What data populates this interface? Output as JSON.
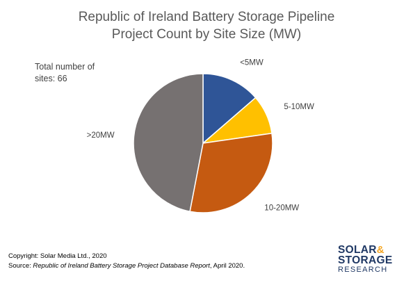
{
  "chart_data": {
    "type": "pie",
    "title": "Republic of Ireland Battery Storage Pipeline",
    "subtitle": "Project Count by Site Size (MW)",
    "annotation": "Total number of sites: 66",
    "total_label_line1": "Total number of",
    "total_label_line2": "sites: 66",
    "categories": [
      "<5MW",
      "5-10MW",
      "10-20MW",
      ">20MW"
    ],
    "values": [
      9,
      6,
      20,
      31
    ],
    "colors": [
      "#2f5597",
      "#ffc000",
      "#c55a11",
      "#767171"
    ],
    "start_angle_deg": 0,
    "direction": "clockwise",
    "legend": "none (data labels beside slices)"
  },
  "footer": {
    "copyright": "Copyright: Solar Media Ltd., 2020",
    "source_prefix": "Source: ",
    "source_title": "Republic of Ireland Battery Storage Project Database Report",
    "source_suffix": ", April 2020."
  },
  "logo": {
    "line1": "SOLAR",
    "ampersand": "&",
    "line2": "STORAGE",
    "line3": "RESEARCH",
    "color_dark": "#1f3864",
    "color_accent": "#f5a623"
  }
}
